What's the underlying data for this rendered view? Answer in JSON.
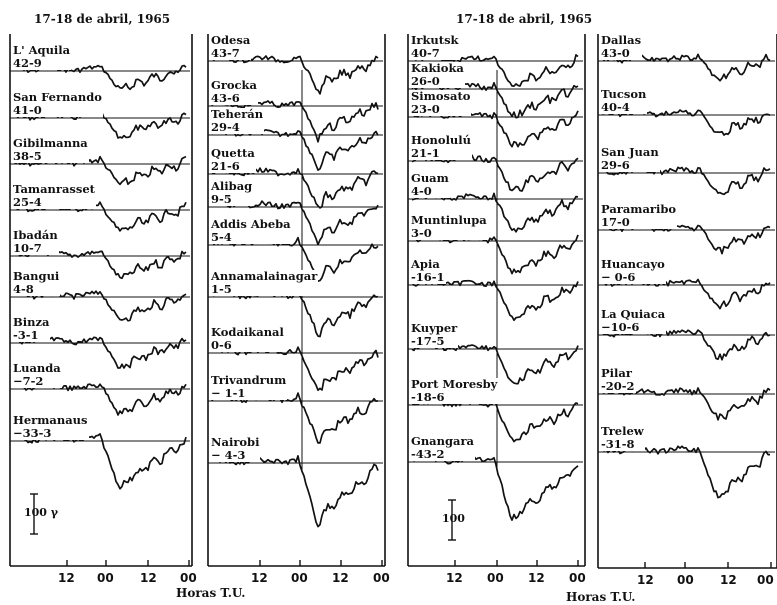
{
  "chart_data": {
    "type": "line",
    "date_left": "17-18 de abril, 1965",
    "date_right": "17-18 de abril, 1965",
    "xlabel": "Horas T.U.",
    "xticks": [
      "12",
      "00",
      "12",
      "00"
    ],
    "scale_left": {
      "label": "100",
      "symbol": "γ"
    },
    "scale_right": {
      "label": "100"
    },
    "panels": [
      {
        "stations": [
          {
            "name": "L' Aquila",
            "lat": "42-9"
          },
          {
            "name": "San Fernando",
            "lat": "41-0"
          },
          {
            "name": "Gibilmanna",
            "lat": "38-5"
          },
          {
            "name": "Tamanrasset",
            "lat": "25-4"
          },
          {
            "name": "Ibadán",
            "lat": "10-7"
          },
          {
            "name": "Bangui",
            "lat": "4-8"
          },
          {
            "name": "Binza",
            "lat": "-3-1"
          },
          {
            "name": "Luanda",
            "lat": "−7-2"
          },
          {
            "name": "Hermanaus",
            "lat": "−33-3"
          }
        ]
      },
      {
        "stations": [
          {
            "name": "Odesa",
            "lat": "43-7"
          },
          {
            "name": "Grocka",
            "lat": "43-6"
          },
          {
            "name": "Teherán",
            "lat": "29-4"
          },
          {
            "name": "Quetta",
            "lat": "21-6"
          },
          {
            "name": "Alibag",
            "lat": "9-5"
          },
          {
            "name": "Addis Abeba",
            "lat": "5-4"
          },
          {
            "name": "Annamalainagar",
            "lat": "1-5"
          },
          {
            "name": "Kodaikanal",
            "lat": "0-6"
          },
          {
            "name": "Trivandrum",
            "lat": "− 1-1"
          },
          {
            "name": "Nairobi",
            "lat": "− 4-3"
          }
        ]
      },
      {
        "stations": [
          {
            "name": "Irkutsk",
            "lat": "40-7"
          },
          {
            "name": "Kakioka",
            "lat": "26-0"
          },
          {
            "name": "Simosato",
            "lat": "23-0"
          },
          {
            "name": "Honolulú",
            "lat": "21-1"
          },
          {
            "name": "Guam",
            "lat": "4-0"
          },
          {
            "name": "Muntinlupa",
            "lat": "3-0"
          },
          {
            "name": "Apia",
            "lat": "-16-1"
          },
          {
            "name": "Kuyper",
            "lat": "-17-5"
          },
          {
            "name": "Port Moresby",
            "lat": "-18-6"
          },
          {
            "name": "Gnangara",
            "lat": "-43-2"
          }
        ]
      },
      {
        "stations": [
          {
            "name": "Dallas",
            "lat": "43-0"
          },
          {
            "name": "Tucson",
            "lat": "40-4"
          },
          {
            "name": "San Juan",
            "lat": "29-6"
          },
          {
            "name": "Paramaribo",
            "lat": "17-0"
          },
          {
            "name": "Huancayo",
            "lat": "− 0-6"
          },
          {
            "name": "La Quiaca",
            "lat": "−10-6"
          },
          {
            "name": "Pilar",
            "lat": "-20-2"
          },
          {
            "name": "Trelew",
            "lat": "-31-8"
          }
        ]
      }
    ]
  }
}
